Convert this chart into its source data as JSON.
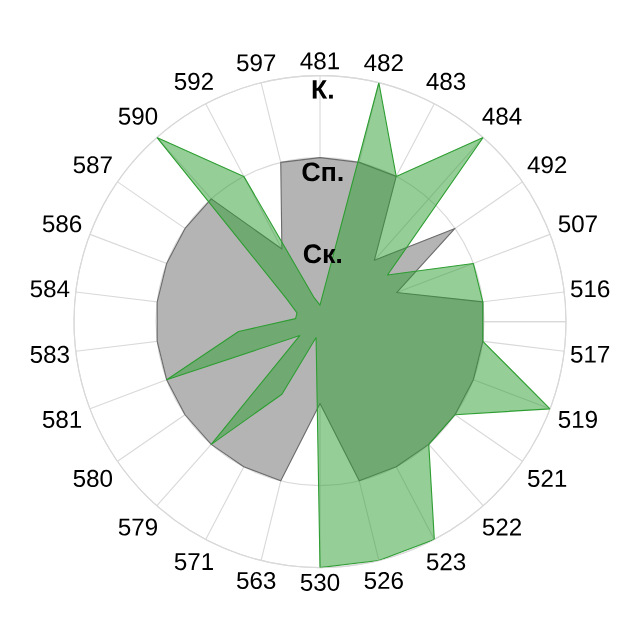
{
  "chart_data": {
    "type": "radar",
    "categories": [
      "481",
      "482",
      "483",
      "484",
      "492",
      "507",
      "516",
      "517",
      "519",
      "521",
      "522",
      "523",
      "526",
      "530",
      "563",
      "571",
      "579",
      "580",
      "581",
      "583",
      "584",
      "586",
      "587",
      "590",
      "592",
      "597"
    ],
    "series": [
      {
        "color": "#b4b4b4",
        "values": [
          2.0,
          2.0,
          2.0,
          1.0,
          2.0,
          1.0,
          2.0,
          2.0,
          2.0,
          2.0,
          2.0,
          2.0,
          2.0,
          1.0,
          2.0,
          2.0,
          2.0,
          2.0,
          2.0,
          2.0,
          2.0,
          2.0,
          2.0,
          2.0,
          1.0,
          2.0
        ]
      },
      {
        "color": "#2e9e32",
        "values": [
          0.2,
          3.0,
          2.0,
          3.0,
          1.0,
          2.0,
          2.0,
          2.0,
          3.0,
          2.0,
          2.0,
          3.0,
          3.0,
          3.0,
          0.2,
          1.0,
          2.0,
          0.3,
          2.0,
          1.0,
          0.3,
          0.3,
          0.5,
          3.0,
          2.0,
          0.3
        ]
      }
    ],
    "ylim": [
      0,
      3
    ],
    "yticks": [
      {
        "value": 1,
        "label": "Ск."
      },
      {
        "value": 2,
        "label": "Сп."
      },
      {
        "value": 3,
        "label": "К."
      }
    ],
    "grid": true
  }
}
